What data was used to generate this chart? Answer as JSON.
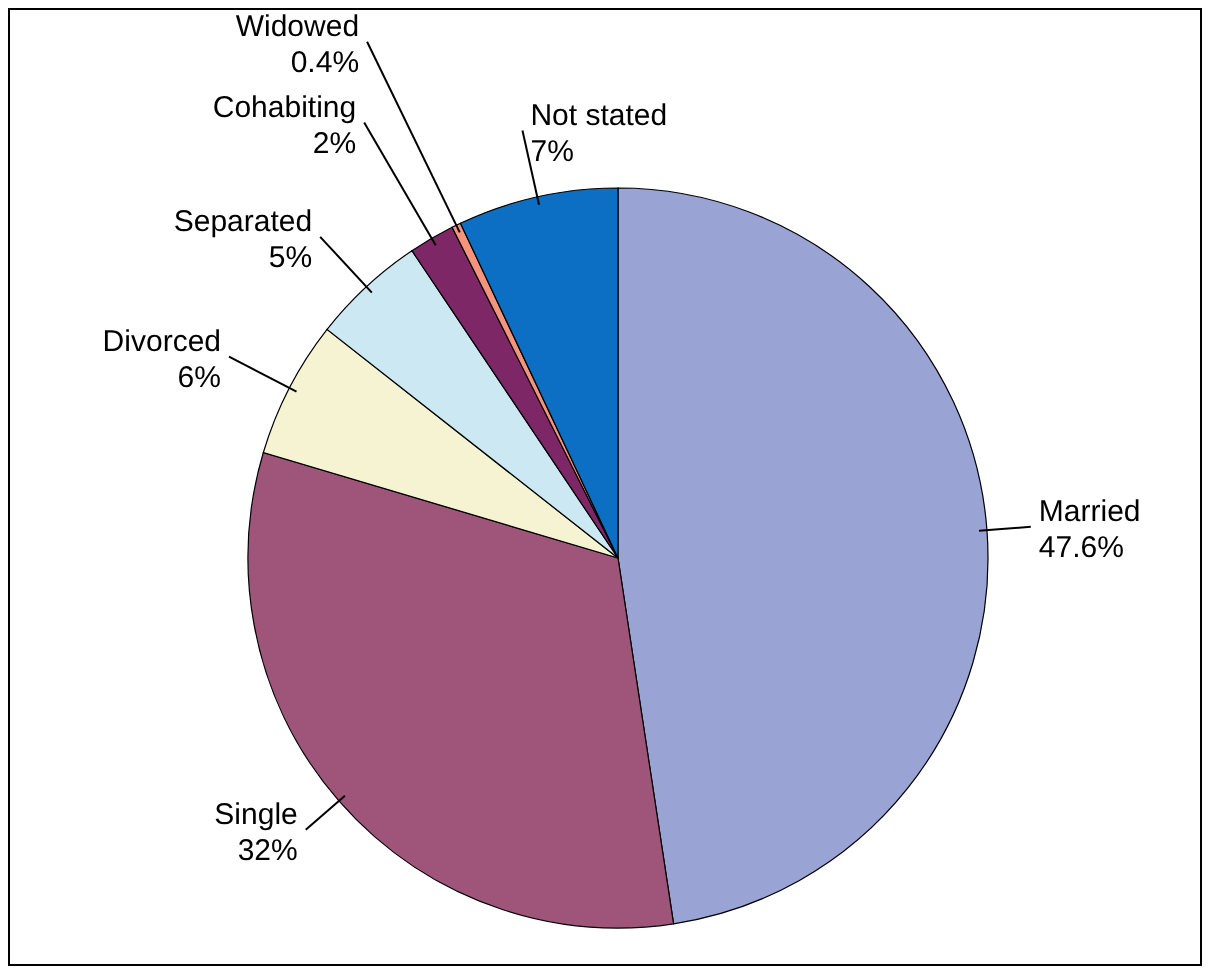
{
  "chart_data": {
    "type": "pie",
    "categories": [
      "Married",
      "Single",
      "Divorced",
      "Separated",
      "Cohabiting",
      "Widowed",
      "Not stated"
    ],
    "values": [
      47.6,
      32,
      6,
      5,
      2,
      0.4,
      7
    ],
    "value_labels": [
      "47.6%",
      "32%",
      "6%",
      "5%",
      "2%",
      "0.4%",
      "7%"
    ],
    "colors": [
      "#99a3d4",
      "#9e5579",
      "#f5f3d1",
      "#cce9f3",
      "#7e2767",
      "#f4947d",
      "#0c6fc3"
    ]
  }
}
